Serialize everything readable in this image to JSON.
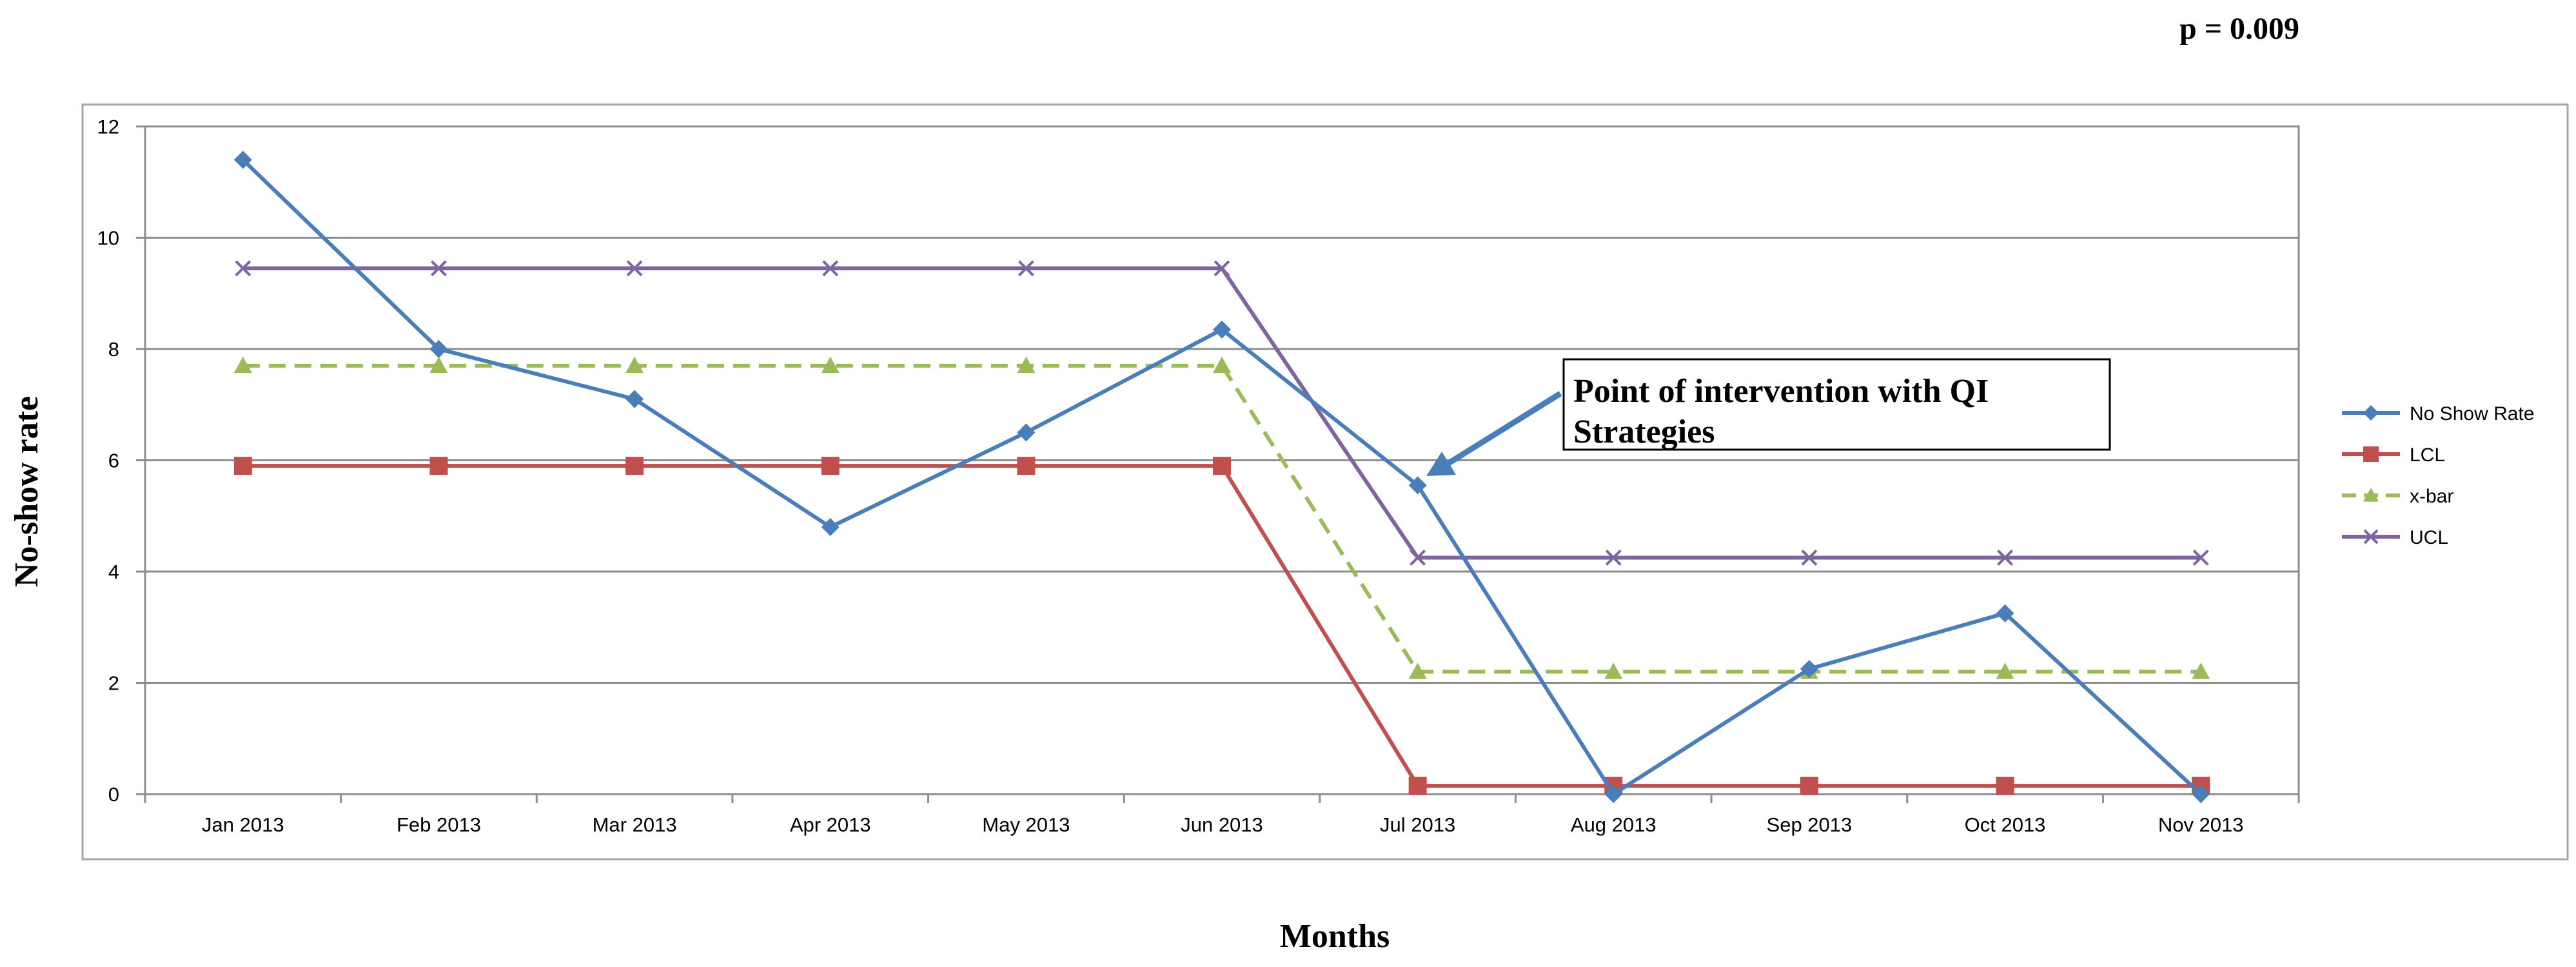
{
  "pvalue_text": "p = 0.009",
  "annotation": {
    "line1": "Point of intervention with QI",
    "line2": "Strategies"
  },
  "chart_data": {
    "type": "line",
    "title": "",
    "xlabel": "Months",
    "ylabel": "No-show rate",
    "ylim": [
      0,
      12
    ],
    "y_ticks": [
      0,
      2,
      4,
      6,
      8,
      10,
      12
    ],
    "grid": "horizontal",
    "legend_position": "right",
    "categories": [
      "Jan 2013",
      "Feb 2013",
      "Mar 2013",
      "Apr 2013",
      "May 2013",
      "Jun 2013",
      "Jul 2013",
      "Aug 2013",
      "Sep 2013",
      "Oct 2013",
      "Nov 2013"
    ],
    "series": [
      {
        "name": "No Show Rate",
        "color": "#4a7ebb",
        "marker": "diamond",
        "dash": "solid",
        "values": [
          11.4,
          8.0,
          7.1,
          4.8,
          6.5,
          8.35,
          5.55,
          0.0,
          2.25,
          3.25,
          0.0
        ]
      },
      {
        "name": "LCL",
        "color": "#c0504d",
        "marker": "square",
        "dash": "solid",
        "values": [
          5.9,
          5.9,
          5.9,
          5.9,
          5.9,
          5.9,
          0.15,
          0.15,
          0.15,
          0.15,
          0.15
        ]
      },
      {
        "name": "x-bar",
        "color": "#9bbb59",
        "marker": "triangle",
        "dash": "dashed",
        "values": [
          7.7,
          7.7,
          7.7,
          7.7,
          7.7,
          7.7,
          2.2,
          2.2,
          2.2,
          2.2,
          2.2
        ]
      },
      {
        "name": "UCL",
        "color": "#8064a2",
        "marker": "x",
        "dash": "solid",
        "values": [
          9.45,
          9.45,
          9.45,
          9.45,
          9.45,
          9.45,
          4.25,
          4.25,
          4.25,
          4.25,
          4.25
        ]
      }
    ]
  }
}
